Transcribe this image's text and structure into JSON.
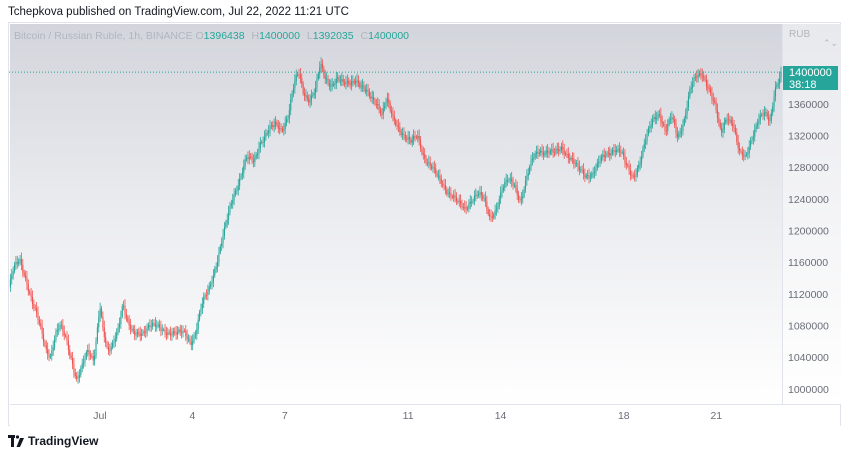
{
  "header": {
    "publisher_line": "Tchepkova published on TradingView.com, Jul 22, 2022 11:21 UTC"
  },
  "legend": {
    "symbol": "Bitcoin / Russian Ruble, 1h, BINANCE",
    "open_label": "O",
    "open": "1396438",
    "high_label": "H",
    "high": "1400000",
    "low_label": "L",
    "low": "1392035",
    "close_label": "C",
    "close": "1400000"
  },
  "axis": {
    "currency": "RUB",
    "settings_icon": "chevron-up-down-icon"
  },
  "last_price": {
    "price": "1400000",
    "countdown": "38:18"
  },
  "footer": {
    "logo_text": "TradingView",
    "logo_icon": "tradingview-logo-icon"
  },
  "colors": {
    "up": "#26a69a",
    "down": "#ef5350",
    "price_line": "#26a69a"
  },
  "chart_data": {
    "type": "candlestick",
    "interval": "1h",
    "y_ticks": [
      1000000,
      1040000,
      1080000,
      1120000,
      1160000,
      1200000,
      1240000,
      1280000,
      1320000,
      1360000
    ],
    "y_tick_labels": [
      "1000000",
      "1040000",
      "1080000",
      "1120000",
      "1160000",
      "1200000",
      "1240000",
      "1280000",
      "1320000",
      "1360000"
    ],
    "ylim": [
      982000,
      1462000
    ],
    "x_ticks": [
      1,
      4,
      7,
      11,
      14,
      18,
      21
    ],
    "x_tick_labels": [
      "Jul",
      "4",
      "7",
      "11",
      "14",
      "18",
      "21"
    ],
    "xlim": [
      -1.95,
      23.1
    ],
    "grid": false,
    "last_close": 1400000,
    "close_path": [
      [
        -1.95,
        1128000
      ],
      [
        -1.8,
        1150000
      ],
      [
        -1.6,
        1162000
      ],
      [
        -1.4,
        1140000
      ],
      [
        -1.2,
        1110000
      ],
      [
        -1.0,
        1085000
      ],
      [
        -0.75,
        1050000
      ],
      [
        -0.6,
        1043000
      ],
      [
        -0.45,
        1068000
      ],
      [
        -0.3,
        1078000
      ],
      [
        -0.1,
        1062000
      ],
      [
        0.1,
        1035000
      ],
      [
        0.25,
        1012000
      ],
      [
        0.4,
        1025000
      ],
      [
        0.6,
        1045000
      ],
      [
        0.8,
        1037000
      ],
      [
        1.0,
        1108000
      ],
      [
        1.1,
        1075000
      ],
      [
        1.25,
        1043000
      ],
      [
        1.4,
        1052000
      ],
      [
        1.6,
        1080000
      ],
      [
        1.75,
        1110000
      ],
      [
        1.9,
        1082000
      ],
      [
        2.1,
        1066000
      ],
      [
        2.35,
        1072000
      ],
      [
        2.6,
        1080000
      ],
      [
        2.9,
        1076000
      ],
      [
        3.2,
        1073000
      ],
      [
        3.5,
        1068000
      ],
      [
        3.75,
        1071000
      ],
      [
        3.95,
        1060000
      ],
      [
        4.1,
        1070000
      ],
      [
        4.3,
        1103000
      ],
      [
        4.55,
        1128000
      ],
      [
        4.8,
        1162000
      ],
      [
        5.05,
        1200000
      ],
      [
        5.3,
        1240000
      ],
      [
        5.55,
        1268000
      ],
      [
        5.75,
        1290000
      ],
      [
        6.0,
        1286000
      ],
      [
        6.2,
        1312000
      ],
      [
        6.45,
        1325000
      ],
      [
        6.7,
        1332000
      ],
      [
        6.9,
        1328000
      ],
      [
        7.1,
        1345000
      ],
      [
        7.3,
        1383000
      ],
      [
        7.45,
        1398000
      ],
      [
        7.6,
        1375000
      ],
      [
        7.8,
        1366000
      ],
      [
        8.0,
        1378000
      ],
      [
        8.15,
        1408000
      ],
      [
        8.3,
        1392000
      ],
      [
        8.5,
        1385000
      ],
      [
        8.7,
        1392000
      ],
      [
        8.9,
        1383000
      ],
      [
        9.1,
        1386000
      ],
      [
        9.3,
        1393000
      ],
      [
        9.5,
        1380000
      ],
      [
        9.75,
        1368000
      ],
      [
        10.0,
        1362000
      ],
      [
        10.15,
        1348000
      ],
      [
        10.3,
        1365000
      ],
      [
        10.5,
        1340000
      ],
      [
        10.7,
        1330000
      ],
      [
        10.9,
        1320000
      ],
      [
        11.1,
        1310000
      ],
      [
        11.3,
        1318000
      ],
      [
        11.5,
        1296000
      ],
      [
        11.75,
        1281000
      ],
      [
        12.0,
        1263000
      ],
      [
        12.25,
        1252000
      ],
      [
        12.45,
        1245000
      ],
      [
        12.65,
        1232000
      ],
      [
        12.85,
        1225000
      ],
      [
        13.05,
        1240000
      ],
      [
        13.25,
        1248000
      ],
      [
        13.45,
        1238000
      ],
      [
        13.65,
        1215000
      ],
      [
        13.85,
        1228000
      ],
      [
        14.05,
        1252000
      ],
      [
        14.25,
        1262000
      ],
      [
        14.45,
        1258000
      ],
      [
        14.65,
        1238000
      ],
      [
        14.85,
        1266000
      ],
      [
        15.05,
        1290000
      ],
      [
        15.25,
        1302000
      ],
      [
        15.5,
        1300000
      ],
      [
        15.75,
        1296000
      ],
      [
        16.0,
        1305000
      ],
      [
        16.25,
        1293000
      ],
      [
        16.5,
        1277000
      ],
      [
        16.75,
        1270000
      ],
      [
        17.0,
        1273000
      ],
      [
        17.2,
        1285000
      ],
      [
        17.45,
        1296000
      ],
      [
        17.7,
        1305000
      ],
      [
        17.9,
        1299000
      ],
      [
        18.1,
        1278000
      ],
      [
        18.3,
        1268000
      ],
      [
        18.5,
        1285000
      ],
      [
        18.7,
        1312000
      ],
      [
        18.95,
        1340000
      ],
      [
        19.15,
        1350000
      ],
      [
        19.35,
        1325000
      ],
      [
        19.55,
        1342000
      ],
      [
        19.75,
        1317000
      ],
      [
        19.95,
        1340000
      ],
      [
        20.15,
        1378000
      ],
      [
        20.35,
        1392000
      ],
      [
        20.55,
        1398000
      ],
      [
        20.75,
        1382000
      ],
      [
        20.95,
        1358000
      ],
      [
        21.15,
        1320000
      ],
      [
        21.35,
        1345000
      ],
      [
        21.55,
        1336000
      ],
      [
        21.75,
        1296000
      ],
      [
        21.95,
        1290000
      ],
      [
        22.15,
        1318000
      ],
      [
        22.35,
        1340000
      ],
      [
        22.55,
        1346000
      ],
      [
        22.75,
        1336000
      ],
      [
        22.9,
        1380000
      ],
      [
        23.1,
        1400000
      ]
    ]
  }
}
